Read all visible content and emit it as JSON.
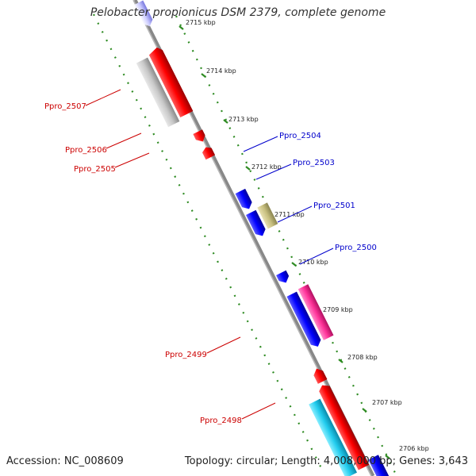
{
  "title": "Pelobacter propionicus DSM 2379, complete genome",
  "footer": {
    "accession": "Accession: NC_008609",
    "summary": "Topology: circular; Length: 4,008,000 bp; Genes: 3,643"
  },
  "scale_labels": [
    "2715 kbp",
    "2714 kbp",
    "2713 kbp",
    "2712 kbp",
    "2711 kbp",
    "2710 kbp",
    "2709 kbp",
    "2708 kbp",
    "2707 kbp",
    "2706 kbp"
  ],
  "gene_labels": {
    "ppro_2507": "Ppro_2507",
    "ppro_2506": "Ppro_2506",
    "ppro_2505": "Ppro_2505",
    "ppro_2504": "Ppro_2504",
    "ppro_2503": "Ppro_2503",
    "ppro_2501": "Ppro_2501",
    "ppro_2500": "Ppro_2500",
    "ppro_2499": "Ppro_2499",
    "ppro_2498": "Ppro_2498"
  },
  "colors": {
    "backbone": "#808080",
    "gc_ticks": "#2e8b22",
    "forward_gene": "#ff0000",
    "reverse_gene": "#0000ff",
    "pseudo_gene": "#c0c0c0",
    "rna_gene": "#c8c080",
    "pink_gene": "#ff3399",
    "cyan_gene": "#22ccee",
    "label_red": "#cc0000",
    "label_blue": "#0000cc"
  }
}
